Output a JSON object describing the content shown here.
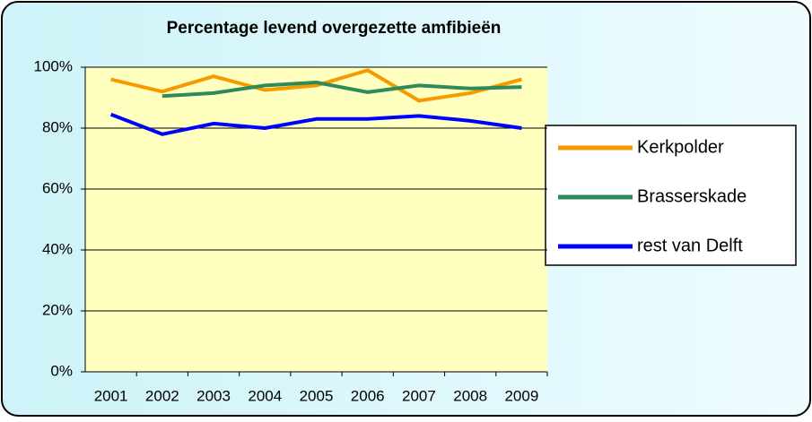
{
  "chart_data": {
    "type": "line",
    "title": "Percentage levend overgezette amfibieën",
    "categories": [
      "2001",
      "2002",
      "2003",
      "2004",
      "2005",
      "2006",
      "2007",
      "2008",
      "2009"
    ],
    "series": [
      {
        "name": "Kerkpolder",
        "color": "#f79a00",
        "values": [
          96,
          92,
          97,
          92.5,
          94,
          99,
          89,
          91.5,
          96
        ]
      },
      {
        "name": "Brasserskade",
        "color": "#2e8b57",
        "values": [
          null,
          90.5,
          91.5,
          94,
          95,
          91.8,
          94,
          93,
          93.5
        ]
      },
      {
        "name": "rest van Delft",
        "color": "#0000ff",
        "values": [
          84.5,
          78,
          81.5,
          80,
          83,
          83,
          84,
          82.4,
          80
        ]
      }
    ],
    "ylim": [
      0,
      100
    ],
    "yticks": [
      {
        "value": 0,
        "label": "0%"
      },
      {
        "value": 20,
        "label": "20%"
      },
      {
        "value": 40,
        "label": "40%"
      },
      {
        "value": 60,
        "label": "60%"
      },
      {
        "value": 80,
        "label": "80%"
      },
      {
        "value": 100,
        "label": "100%"
      }
    ],
    "grid": true,
    "legend": "right"
  }
}
